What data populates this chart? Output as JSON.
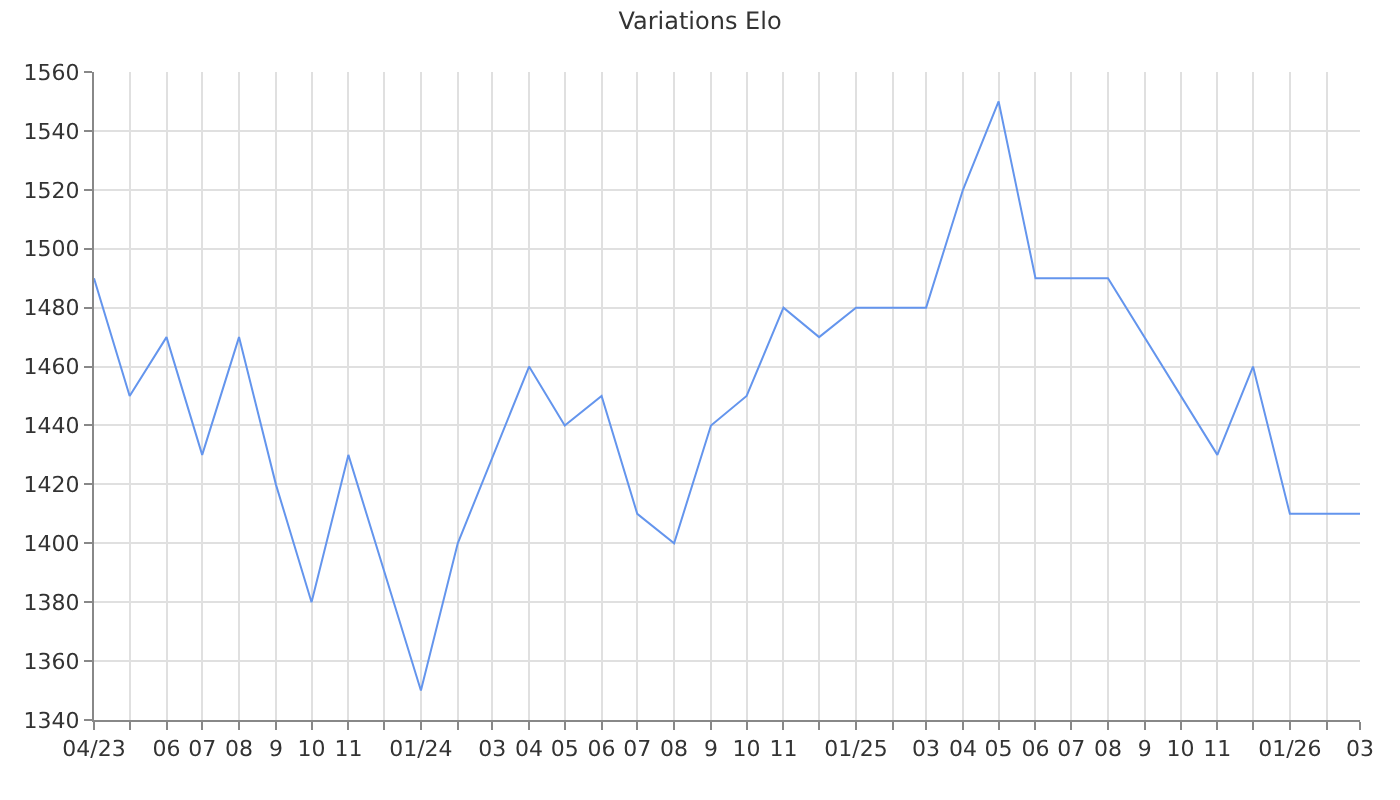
{
  "chart_data": {
    "type": "line",
    "title": "Variations Elo",
    "x": [
      "2023-04",
      "2023-05",
      "2023-06",
      "2023-07",
      "2023-08",
      "2023-09",
      "2023-10",
      "2023-11",
      "2024-01",
      "2024-02",
      "2024-04",
      "2024-05",
      "2024-06",
      "2024-07",
      "2024-08",
      "2024-09",
      "2024-10",
      "2024-11",
      "2024-12",
      "2025-01",
      "2025-03",
      "2025-04",
      "2025-05",
      "2025-06",
      "2025-08",
      "2025-11",
      "2025-12",
      "2026-01",
      "2026-03"
    ],
    "series": [
      {
        "color": "#6495ed",
        "values": [
          1490,
          1450,
          1470,
          1430,
          1470,
          1420,
          1380,
          1430,
          1350,
          1400,
          1460,
          1440,
          1450,
          1410,
          1400,
          1440,
          1450,
          1480,
          1470,
          1480,
          1480,
          1520,
          1550,
          1490,
          1490,
          1430,
          1460,
          1410,
          1410
        ]
      }
    ],
    "xlim": [
      "2023-04",
      "2026-03"
    ],
    "xticks": [
      {
        "value": "2023-04",
        "label": "04/23"
      },
      {
        "value": "2023-05",
        "label": null
      },
      {
        "value": "2023-06",
        "label": "06"
      },
      {
        "value": "2023-07",
        "label": "07"
      },
      {
        "value": "2023-08",
        "label": "08"
      },
      {
        "value": "2023-09",
        "label": "9"
      },
      {
        "value": "2023-10",
        "label": "10"
      },
      {
        "value": "2023-11",
        "label": "11"
      },
      {
        "value": "2023-12",
        "label": null
      },
      {
        "value": "2024-01",
        "label": "01/24"
      },
      {
        "value": "2024-02",
        "label": null
      },
      {
        "value": "2024-03",
        "label": "03"
      },
      {
        "value": "2024-04",
        "label": "04"
      },
      {
        "value": "2024-05",
        "label": "05"
      },
      {
        "value": "2024-06",
        "label": "06"
      },
      {
        "value": "2024-07",
        "label": "07"
      },
      {
        "value": "2024-08",
        "label": "08"
      },
      {
        "value": "2024-09",
        "label": "9"
      },
      {
        "value": "2024-10",
        "label": "10"
      },
      {
        "value": "2024-11",
        "label": "11"
      },
      {
        "value": "2024-12",
        "label": null
      },
      {
        "value": "2025-01",
        "label": "01/25"
      },
      {
        "value": "2025-02",
        "label": null
      },
      {
        "value": "2025-03",
        "label": "03"
      },
      {
        "value": "2025-04",
        "label": "04"
      },
      {
        "value": "2025-05",
        "label": "05"
      },
      {
        "value": "2025-06",
        "label": "06"
      },
      {
        "value": "2025-07",
        "label": "07"
      },
      {
        "value": "2025-08",
        "label": "08"
      },
      {
        "value": "2025-09",
        "label": "9"
      },
      {
        "value": "2025-10",
        "label": "10"
      },
      {
        "value": "2025-11",
        "label": "11"
      },
      {
        "value": "2025-12",
        "label": null
      },
      {
        "value": "2026-01",
        "label": "01/26"
      },
      {
        "value": "2026-02",
        "label": null
      },
      {
        "value": "2026-03",
        "label": "03"
      }
    ],
    "ylim": [
      1340,
      1560
    ],
    "yticks": [
      1340,
      1360,
      1380,
      1400,
      1420,
      1440,
      1460,
      1480,
      1500,
      1520,
      1540,
      1560
    ],
    "grid": true,
    "legend": false,
    "marker": "none",
    "line_style": "solid"
  }
}
